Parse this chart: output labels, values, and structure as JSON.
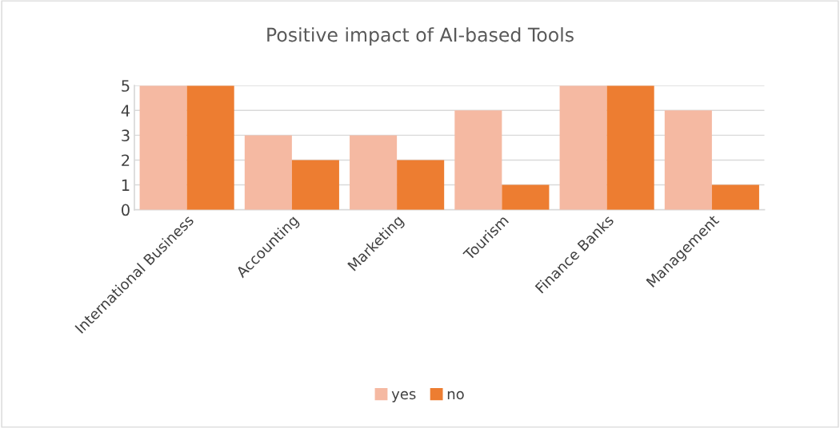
{
  "chart_data": {
    "type": "bar",
    "title": "Positive impact of AI-based Tools",
    "categories": [
      "International Business",
      "Accounting",
      "Marketing",
      "Tourism",
      "Finance Banks",
      "Management"
    ],
    "series": [
      {
        "name": "yes",
        "color": "#f5b9a2",
        "values": [
          5,
          3,
          3,
          4,
          5,
          4
        ]
      },
      {
        "name": "no",
        "color": "#ed7d31",
        "values": [
          5,
          2,
          2,
          1,
          5,
          1
        ]
      }
    ],
    "ylim": [
      0,
      5
    ],
    "yticks": [
      0,
      1,
      2,
      3,
      4,
      5
    ],
    "grid": "y",
    "legend": "bottom"
  }
}
